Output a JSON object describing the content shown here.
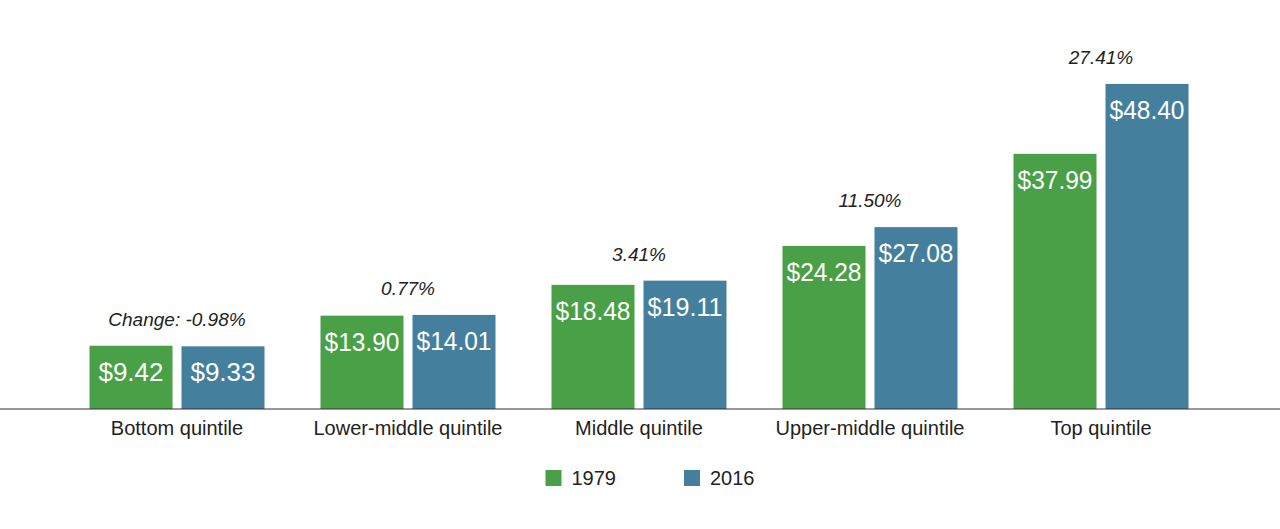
{
  "chart_data": {
    "type": "bar",
    "categories": [
      "Bottom quintile",
      "Lower-middle quintile",
      "Middle quintile",
      "Upper-middle quintile",
      "Top quintile"
    ],
    "series": [
      {
        "name": "1979",
        "color": "#4aa046",
        "values": [
          9.42,
          13.9,
          18.48,
          24.28,
          37.99
        ],
        "value_labels": [
          "$9.42",
          "$13.90",
          "$18.48",
          "$24.28",
          "$37.99"
        ]
      },
      {
        "name": "2016",
        "color": "#457f9e",
        "values": [
          9.33,
          14.01,
          19.11,
          27.08,
          48.4
        ],
        "value_labels": [
          "$9.33",
          "$14.01",
          "$19.11",
          "$27.08",
          "$48.40"
        ]
      }
    ],
    "annotations": [
      "Change: -0.98%",
      "0.77%",
      "3.41%",
      "11.50%",
      "27.41%"
    ],
    "ylim": [
      0,
      60
    ],
    "data_labels": true,
    "tick_labels": "x",
    "grid": false,
    "legend": "bottom"
  }
}
